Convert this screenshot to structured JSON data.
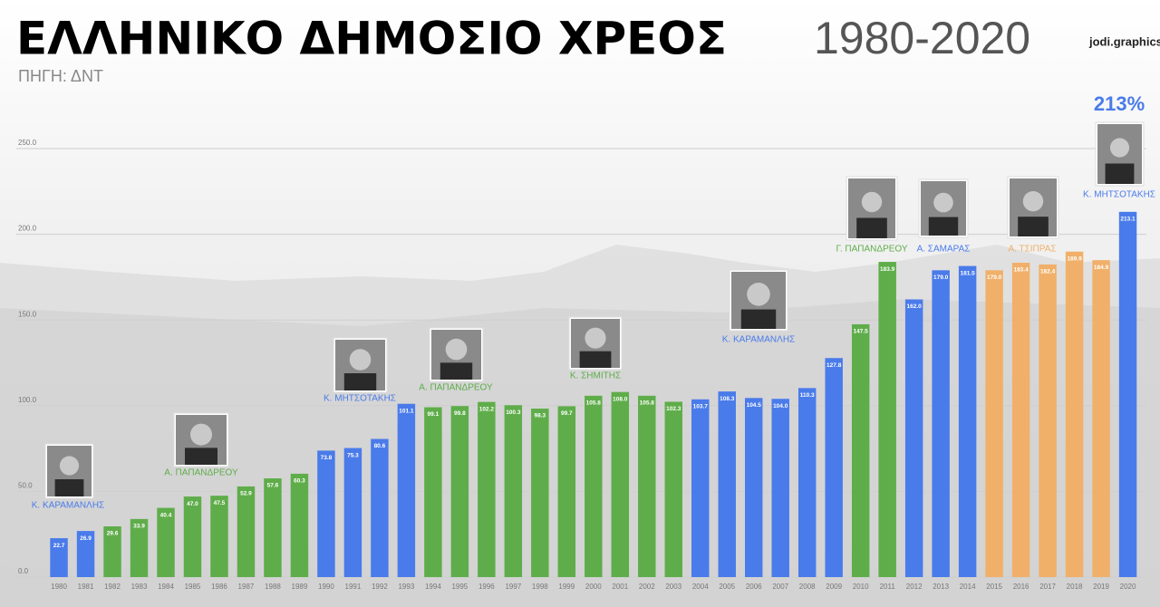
{
  "chart_data": {
    "type": "bar",
    "title": "ΕΛΛΗΝΙΚΟ ΔΗΜΟΣΙΟ ΧΡΕΟΣ",
    "title_years": "1980-2020",
    "subtitle": "ΠΗΓΗ: ΔΝΤ",
    "credit": "jodi.graphics",
    "callout": "213%",
    "categories": [
      "1980",
      "1981",
      "1982",
      "1983",
      "1984",
      "1985",
      "1986",
      "1987",
      "1988",
      "1989",
      "1990",
      "1991",
      "1992",
      "1993",
      "1994",
      "1995",
      "1996",
      "1997",
      "1998",
      "1999",
      "2000",
      "2001",
      "2002",
      "2003",
      "2004",
      "2005",
      "2006",
      "2007",
      "2008",
      "2009",
      "2010",
      "2011",
      "2012",
      "2013",
      "2014",
      "2015",
      "2016",
      "2017",
      "2018",
      "2019",
      "2020"
    ],
    "values": [
      22.7,
      26.9,
      29.6,
      33.9,
      40.4,
      47.0,
      47.5,
      52.9,
      57.6,
      60.3,
      73.8,
      75.3,
      80.6,
      101.1,
      99.1,
      99.8,
      102.2,
      100.3,
      98.3,
      99.7,
      105.8,
      108.0,
      105.8,
      102.3,
      103.7,
      108.3,
      104.5,
      104.0,
      110.3,
      127.8,
      147.5,
      183.9,
      162.0,
      179.0,
      181.5,
      179.0,
      183.4,
      182.4,
      189.9,
      184.9,
      213.1
    ],
    "value_labels": [
      "22.7",
      "26.9",
      "29.6",
      "33.9",
      "40.4",
      "47.0",
      "47.5",
      "52.9",
      "57.6",
      "60.3",
      "73.8",
      "75.3",
      "80.6",
      "101.1",
      "99.1",
      "99.8",
      "102.2",
      "100.3",
      "98.3",
      "99.7",
      "105.8",
      "108.0",
      "105.8",
      "102.3",
      "103.7",
      "108.3",
      "104.5",
      "104.0",
      "110.3",
      "127.8",
      "147.5",
      "183.9",
      "162.0",
      "179.0",
      "181.5",
      "179.0",
      "183.4",
      "182.4",
      "189.9",
      "184.9",
      "213.1"
    ],
    "colors": [
      "#4a7bea",
      "#4a7bea",
      "#5fad4a",
      "#5fad4a",
      "#5fad4a",
      "#5fad4a",
      "#5fad4a",
      "#5fad4a",
      "#5fad4a",
      "#5fad4a",
      "#4a7bea",
      "#4a7bea",
      "#4a7bea",
      "#4a7bea",
      "#5fad4a",
      "#5fad4a",
      "#5fad4a",
      "#5fad4a",
      "#5fad4a",
      "#5fad4a",
      "#5fad4a",
      "#5fad4a",
      "#5fad4a",
      "#5fad4a",
      "#4a7bea",
      "#4a7bea",
      "#4a7bea",
      "#4a7bea",
      "#4a7bea",
      "#4a7bea",
      "#5fad4a",
      "#5fad4a",
      "#4a7bea",
      "#4a7bea",
      "#4a7bea",
      "#f0b06a",
      "#f0b06a",
      "#f0b06a",
      "#f0b06a",
      "#f0b06a",
      "#4a7bea"
    ],
    "ylim": [
      0,
      250
    ],
    "yticks": [
      {
        "value": 0,
        "label": "0.0"
      },
      {
        "value": 50,
        "label": "50.0"
      },
      {
        "value": 100,
        "label": "100.0"
      },
      {
        "value": 150,
        "label": "150.0"
      },
      {
        "value": 200,
        "label": "200.0"
      },
      {
        "value": 250,
        "label": "250.0"
      }
    ],
    "grid": true,
    "annotations": [
      {
        "text": "Κ. ΚΑΡΑΜΑΝΛΗΣ",
        "color": "#4a7bea"
      },
      {
        "text": "Α. ΠΑΠΑΝΔΡΕΟΥ",
        "color": "#5fad4a"
      },
      {
        "text": "Κ. ΜΗΤΣΟΤΑΚΗΣ",
        "color": "#4a7bea"
      },
      {
        "text": "Α. ΠΑΠΑΝΔΡΕΟΥ",
        "color": "#5fad4a"
      },
      {
        "text": "Κ. ΣΗΜΙΤΗΣ",
        "color": "#5fad4a"
      },
      {
        "text": "Κ. ΚΑΡΑΜΑΝΛΗΣ",
        "color": "#4a7bea"
      },
      {
        "text": "Γ. ΠΑΠΑΝΔΡΕΟΥ",
        "color": "#5fad4a"
      },
      {
        "text": "Α. ΣΑΜΑΡΑΣ",
        "color": "#4a7bea"
      },
      {
        "text": "Α. ΤΣΙΠΡΑΣ",
        "color": "#f0b06a"
      },
      {
        "text": "Κ. ΜΗΤΣΟΤΑΚΗΣ",
        "color": "#4a7bea"
      }
    ]
  }
}
